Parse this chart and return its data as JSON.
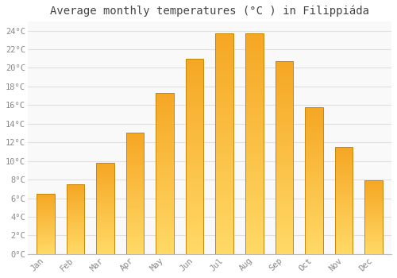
{
  "title": "Average monthly temperatures (°C ) in Filippiáda",
  "months": [
    "Jan",
    "Feb",
    "Mar",
    "Apr",
    "May",
    "Jun",
    "Jul",
    "Aug",
    "Sep",
    "Oct",
    "Nov",
    "Dec"
  ],
  "values": [
    6.5,
    7.5,
    9.8,
    13.0,
    17.3,
    21.0,
    23.7,
    23.7,
    20.7,
    15.8,
    11.5,
    7.9
  ],
  "bar_color_top": "#F5A623",
  "bar_color_bottom": "#FFD966",
  "bar_edge_color": "#C8860A",
  "ylim": [
    0,
    25
  ],
  "ytick_step": 2,
  "background_color": "#ffffff",
  "plot_bg_color": "#f9f9f9",
  "grid_color": "#e0e0e0",
  "title_fontsize": 10,
  "tick_fontsize": 7.5,
  "tick_color": "#888888",
  "title_color": "#444444",
  "font_family": "monospace",
  "bar_width": 0.6
}
